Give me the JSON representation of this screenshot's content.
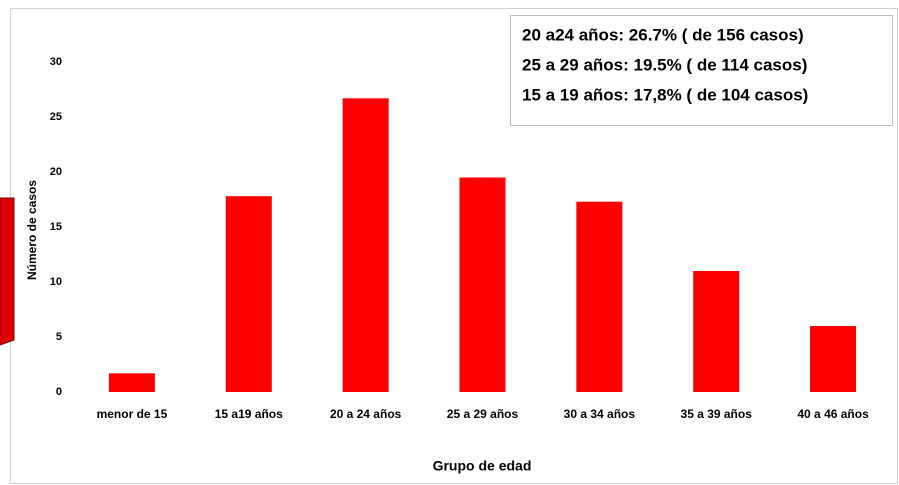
{
  "chart_data": {
    "type": "bar",
    "categories": [
      "menor de 15",
      "15 a19 años",
      "20 a 24 años",
      "25 a 29 años",
      "30 a 34 años",
      "35 a 39 años",
      "40 a 46 años"
    ],
    "values": [
      1.7,
      17.8,
      26.7,
      19.5,
      17.3,
      11,
      6
    ],
    "color": "#ff0000",
    "ylim": [
      0,
      30
    ],
    "yticks": [
      0,
      5,
      10,
      15,
      20,
      25,
      30
    ],
    "grid": false,
    "x_label": "Grupo de edad",
    "y_label": "Número de casos",
    "annotations": [
      "20 a24 años: 26.7% ( de 156 casos)",
      "25 a 29 años: 19.5% ( de 114 casos)",
      "15 a 19 años: 17,8% ( de 104 casos)"
    ]
  }
}
